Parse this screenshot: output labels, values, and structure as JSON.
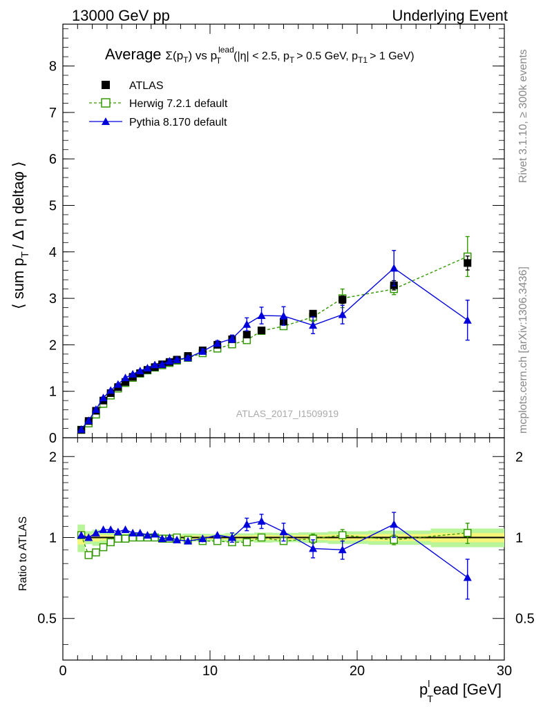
{
  "header": {
    "left": "13000 GeV pp",
    "right": "Underlying Event"
  },
  "side": {
    "rivet": "Rivet 3.1.10, ≥ 300k events",
    "mcplots": "mcplots.cern.ch [arXiv:1306.3436]"
  },
  "watermark": "ATLAS_2017_I1509919",
  "title": {
    "main": "Average",
    "sigma": "Σ(p",
    "sub_t": "T",
    "close": ") vs p",
    "sup_lead": "lead",
    "sub_t2": "T",
    "cuts": "(|η| < 2.5, p",
    "cuts_sub": "T",
    "cuts2": "> 0.5 GeV, p",
    "cuts2_sub": "T1",
    "cuts3": "> 1 GeV)"
  },
  "axes": {
    "ylabel_main": "⟨ sum p",
    "ylabel_sub": "T",
    "ylabel_rest": "/ Δ η deltaφ ⟩",
    "ylabel_ratio": "Ratio to ATLAS",
    "xlabel_p": "p",
    "xlabel_sub": "T",
    "xlabel_sup": "l",
    "xlabel_rest": "ead [GeV]"
  },
  "legend": {
    "atlas": "ATLAS",
    "herwig": "Herwig 7.2.1 default",
    "pythia": "Pythia 8.170 default"
  },
  "colors": {
    "atlas": "#000000",
    "herwig": "#339900",
    "pythia": "#0000dd",
    "band_inner": "#f5f57a",
    "band_outer": "#b8f59a"
  },
  "chart_data": [
    {
      "type": "line",
      "panel": "main",
      "xlabel": "p_T^lead [GeV]",
      "ylabel": "⟨ sum p_T / Δ η deltaφ ⟩",
      "xlim": [
        0,
        30
      ],
      "ylim": [
        0,
        8.9
      ],
      "yticks": [
        0,
        1,
        2,
        3,
        4,
        5,
        6,
        7,
        8
      ],
      "xticks": [
        0,
        10,
        20,
        30
      ],
      "legend_position": "top-left",
      "x": [
        1.25,
        1.75,
        2.25,
        2.75,
        3.25,
        3.75,
        4.25,
        4.75,
        5.25,
        5.75,
        6.25,
        6.75,
        7.25,
        7.75,
        8.5,
        9.5,
        10.5,
        11.5,
        12.5,
        13.5,
        15.0,
        17.0,
        19.0,
        22.5,
        27.5
      ],
      "series": [
        {
          "name": "ATLAS",
          "marker": "square-filled",
          "values": [
            0.17,
            0.36,
            0.58,
            0.8,
            0.96,
            1.09,
            1.2,
            1.31,
            1.39,
            1.46,
            1.52,
            1.58,
            1.63,
            1.68,
            1.76,
            1.88,
            2.0,
            2.12,
            2.22,
            2.31,
            2.5,
            2.67,
            2.97,
            3.28,
            3.76
          ],
          "errors": [
            0.01,
            0.01,
            0.02,
            0.02,
            0.02,
            0.02,
            0.02,
            0.02,
            0.02,
            0.02,
            0.02,
            0.02,
            0.02,
            0.02,
            0.03,
            0.03,
            0.03,
            0.04,
            0.04,
            0.05,
            0.05,
            0.06,
            0.08,
            0.1,
            0.15
          ]
        },
        {
          "name": "Herwig 7.2.1 default",
          "marker": "square-open",
          "line": "dashed",
          "values": [
            0.17,
            0.31,
            0.5,
            0.73,
            0.91,
            1.06,
            1.18,
            1.29,
            1.38,
            1.45,
            1.51,
            1.56,
            1.61,
            1.66,
            1.72,
            1.82,
            1.92,
            2.01,
            2.1,
            2.3,
            2.4,
            2.6,
            3.0,
            3.2,
            3.9
          ],
          "errors": [
            0.01,
            0.01,
            0.01,
            0.02,
            0.02,
            0.02,
            0.02,
            0.02,
            0.02,
            0.02,
            0.02,
            0.02,
            0.03,
            0.03,
            0.03,
            0.04,
            0.04,
            0.04,
            0.05,
            0.05,
            0.07,
            0.1,
            0.2,
            0.12,
            0.43
          ]
        },
        {
          "name": "Pythia 8.170 default",
          "marker": "triangle-filled",
          "line": "solid",
          "values": [
            0.18,
            0.37,
            0.61,
            0.86,
            1.02,
            1.15,
            1.29,
            1.37,
            1.44,
            1.5,
            1.57,
            1.58,
            1.65,
            1.68,
            1.72,
            1.86,
            2.03,
            2.13,
            2.44,
            2.63,
            2.62,
            2.42,
            2.65,
            3.65,
            2.53
          ],
          "errors": [
            0.01,
            0.01,
            0.02,
            0.02,
            0.02,
            0.03,
            0.03,
            0.03,
            0.03,
            0.03,
            0.03,
            0.03,
            0.04,
            0.04,
            0.04,
            0.05,
            0.06,
            0.08,
            0.14,
            0.18,
            0.2,
            0.18,
            0.2,
            0.38,
            0.43
          ]
        }
      ]
    },
    {
      "type": "line",
      "panel": "ratio",
      "ylabel": "Ratio to ATLAS",
      "xlabel": "p_T^lead [GeV]",
      "xlim": [
        0,
        30
      ],
      "ylim": [
        0.35,
        2.35
      ],
      "ylog": true,
      "yticks": [
        0.5,
        1,
        2
      ],
      "xticks": [
        0,
        10,
        20,
        30
      ],
      "x": [
        1.25,
        1.75,
        2.25,
        2.75,
        3.25,
        3.75,
        4.25,
        4.75,
        5.25,
        5.75,
        6.25,
        6.75,
        7.25,
        7.75,
        8.5,
        9.5,
        10.5,
        11.5,
        12.5,
        13.5,
        15.0,
        17.0,
        19.0,
        22.5,
        27.5
      ],
      "series": [
        {
          "name": "Herwig 7.2.1 default",
          "marker": "square-open",
          "line": "dashed",
          "values": [
            1.02,
            0.86,
            0.88,
            0.92,
            0.96,
            0.99,
            0.99,
            1.0,
            1.0,
            1.0,
            1.0,
            0.99,
            0.99,
            1.0,
            0.98,
            0.97,
            0.97,
            0.96,
            0.96,
            1.0,
            0.97,
            0.99,
            1.02,
            0.98,
            1.04
          ],
          "errors": [
            0.01,
            0.01,
            0.01,
            0.01,
            0.01,
            0.01,
            0.01,
            0.01,
            0.01,
            0.01,
            0.01,
            0.01,
            0.01,
            0.01,
            0.01,
            0.01,
            0.01,
            0.02,
            0.02,
            0.02,
            0.03,
            0.04,
            0.05,
            0.04,
            0.09
          ]
        },
        {
          "name": "Pythia 8.170 default",
          "marker": "triangle-filled",
          "line": "solid",
          "values": [
            1.02,
            1.0,
            1.04,
            1.07,
            1.07,
            1.05,
            1.07,
            1.04,
            1.04,
            1.02,
            1.03,
            0.99,
            1.0,
            0.98,
            0.97,
            0.99,
            1.02,
            1.0,
            1.12,
            1.15,
            1.05,
            0.91,
            0.9,
            1.12,
            0.71
          ],
          "errors": [
            0.01,
            0.01,
            0.02,
            0.02,
            0.02,
            0.02,
            0.02,
            0.02,
            0.02,
            0.02,
            0.02,
            0.02,
            0.02,
            0.02,
            0.02,
            0.03,
            0.03,
            0.04,
            0.06,
            0.07,
            0.08,
            0.07,
            0.07,
            0.12,
            0.12
          ]
        }
      ]
    }
  ]
}
